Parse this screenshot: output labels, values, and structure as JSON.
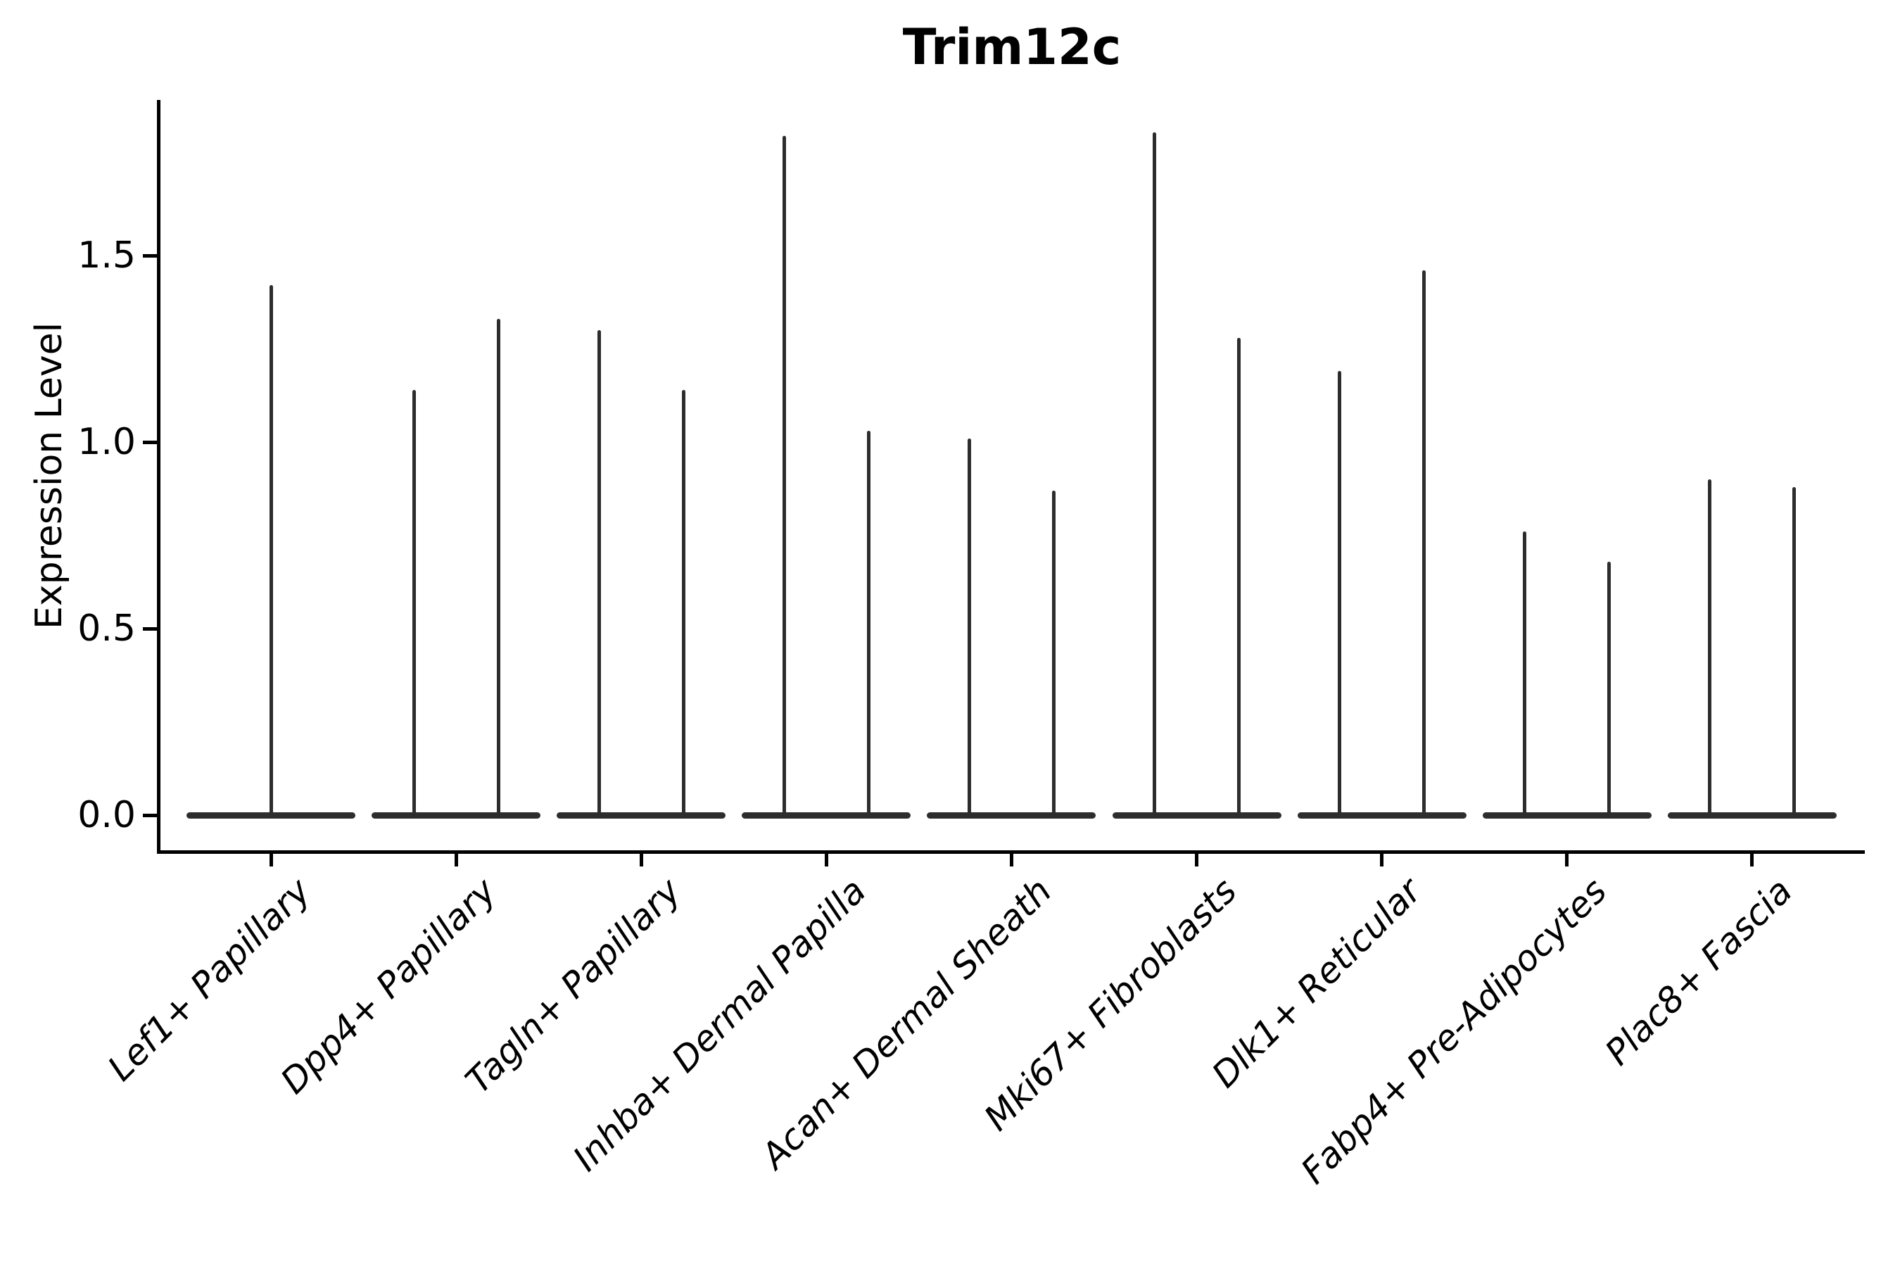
{
  "title": "Trim12c",
  "y_axis": {
    "label": "Expression Level",
    "tick_labels": [
      "0.0",
      "0.5",
      "1.0",
      "1.5"
    ]
  },
  "chart_data": {
    "type": "violin",
    "title": "Trim12c",
    "xlabel": "",
    "ylabel": "Expression Level",
    "ylim": [
      0,
      1.92
    ],
    "yticks": [
      0.0,
      0.5,
      1.0,
      1.5
    ],
    "grid": false,
    "legend": "none",
    "categories": [
      "Lef1+ Papillary",
      "Dpp4+ Papillary",
      "Tagln+ Papillary",
      "Inhba+ Dermal Papilla",
      "Acan+ Dermal Sheath",
      "Mki67+ Fibroblasts",
      "Dlk1+ Reticular",
      "Fabp4+ Pre-Adipocytes",
      "Plac8+ Fascia"
    ],
    "violins": [
      {
        "category": "Lef1+ Papillary",
        "base_value": 0.0,
        "density_peaks": [
          1.42
        ]
      },
      {
        "category": "Dpp4+ Papillary",
        "base_value": 0.0,
        "density_peaks": [
          1.14,
          1.33
        ]
      },
      {
        "category": "Tagln+ Papillary",
        "base_value": 0.0,
        "density_peaks": [
          1.3,
          1.14
        ]
      },
      {
        "category": "Inhba+ Dermal Papilla",
        "base_value": 0.0,
        "density_peaks": [
          1.82,
          1.03
        ]
      },
      {
        "category": "Acan+ Dermal Sheath",
        "base_value": 0.0,
        "density_peaks": [
          1.01,
          0.87
        ]
      },
      {
        "category": "Mki67+ Fibroblasts",
        "base_value": 0.0,
        "density_peaks": [
          1.83,
          1.28
        ]
      },
      {
        "category": "Dlk1+ Reticular",
        "base_value": 0.0,
        "density_peaks": [
          1.19,
          1.46
        ]
      },
      {
        "category": "Fabp4+ Pre-Adipocytes",
        "base_value": 0.0,
        "density_peaks": [
          0.76,
          0.68
        ]
      },
      {
        "category": "Plac8+ Fascia",
        "base_value": 0.0,
        "density_peaks": [
          0.9,
          0.88
        ]
      }
    ],
    "style": {
      "violin_color": "#2d2d2d",
      "axis_color": "#000000",
      "background": "#ffffff",
      "base_width_frac": 0.91,
      "spike_offset_frac": 0.228,
      "spines_shown": [
        "left",
        "bottom"
      ],
      "x_label_rotation_deg": 45,
      "x_label_style": "italic"
    }
  }
}
